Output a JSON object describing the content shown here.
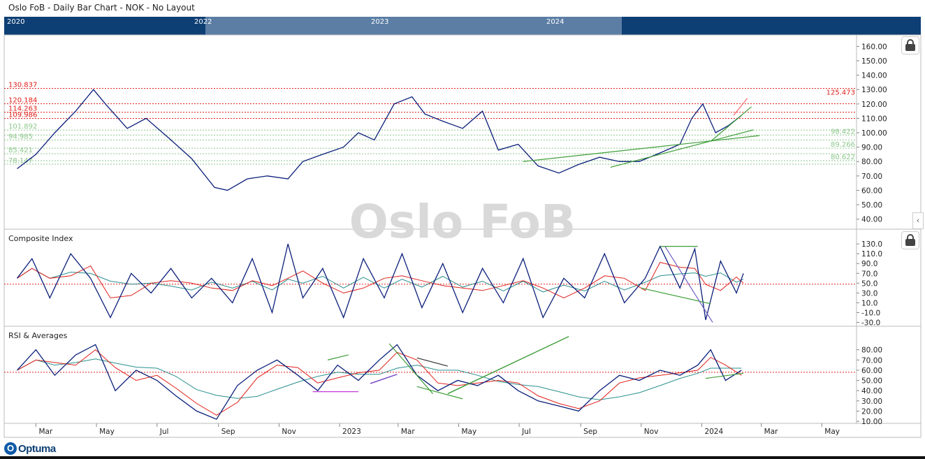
{
  "window_title": "Oslo FoB - Daily Bar Chart - NOK - No Layout",
  "navigator": {
    "years": [
      "2020",
      "2022",
      "2023",
      "2024"
    ]
  },
  "watermark": "Oslo FoB",
  "logo_text": "Optuma",
  "icons": {
    "lock": "lock-icon",
    "collapse": "chevron-left-icon",
    "logo": "optuma-logo-icon"
  },
  "colors": {
    "price": "#0b1f7a",
    "red_levels": "#e0201a",
    "green_levels": "#8cc78c",
    "trend_green": "#3f9e3a",
    "ma_red": "#e0201a",
    "ma_teal": "#2a8f8f",
    "nav_bg": "#0e3f74"
  },
  "chart_data": [
    {
      "type": "line",
      "panel": "price",
      "x": [
        "2022-02-10",
        "2022-03-01",
        "2022-03-20",
        "2022-04-10",
        "2022-04-28",
        "2022-05-10",
        "2022-06-01",
        "2022-06-20",
        "2022-07-15",
        "2022-08-05",
        "2022-08-28",
        "2022-09-10",
        "2022-09-30",
        "2022-10-20",
        "2022-11-10",
        "2022-11-25",
        "2022-12-15",
        "2023-01-05",
        "2023-01-20",
        "2023-02-05",
        "2023-02-25",
        "2023-03-15",
        "2023-03-28",
        "2023-04-15",
        "2023-05-05",
        "2023-05-25",
        "2023-06-10",
        "2023-06-30",
        "2023-07-20",
        "2023-08-10",
        "2023-08-30",
        "2023-09-20",
        "2023-10-10",
        "2023-10-30",
        "2023-11-20",
        "2023-12-10",
        "2023-12-22",
        "2024-01-02",
        "2024-01-15",
        "2024-01-28",
        "2024-02-10"
      ],
      "values": [
        75,
        85,
        100,
        115,
        130,
        120,
        103,
        110,
        95,
        82,
        62,
        60,
        68,
        70,
        68,
        80,
        85,
        90,
        100,
        95,
        120,
        125,
        113,
        108,
        103,
        115,
        88,
        92,
        77,
        72,
        78,
        83,
        80,
        80,
        86,
        92,
        110,
        120,
        100,
        105,
        112
      ],
      "yticks": [
        "160.00",
        "150.00",
        "140.00",
        "130.00",
        "120.00",
        "110.00",
        "100.00",
        "90.00",
        "80.00",
        "70.00",
        "60.00",
        "50.00",
        "40.00"
      ],
      "ylim": [
        34,
        167
      ],
      "levels_red": [
        {
          "value": 130.837,
          "label": "130.837"
        },
        {
          "value": 120.184,
          "label": "120.184"
        },
        {
          "value": 114.263,
          "label": "114.263"
        },
        {
          "value": 109.986,
          "label": "109.986"
        },
        {
          "value": 125.473,
          "label": "125.473"
        }
      ],
      "levels_green": [
        {
          "value": 101.892,
          "label": "101.892"
        },
        {
          "value": 98.422,
          "label": "98.422"
        },
        {
          "value": 94.985,
          "label": "94.985"
        },
        {
          "value": 89.266,
          "label": "89.266"
        },
        {
          "value": 85.421,
          "label": "85.421"
        },
        {
          "value": 80.622,
          "label": "80.622"
        },
        {
          "value": 78.147,
          "label": "78.147"
        }
      ]
    },
    {
      "type": "line",
      "panel": "composite",
      "title": "Composite Index",
      "x": [
        "2022-02-10",
        "2022-02-25",
        "2022-03-15",
        "2022-04-05",
        "2022-04-25",
        "2022-05-15",
        "2022-06-05",
        "2022-06-25",
        "2022-07-15",
        "2022-08-05",
        "2022-08-25",
        "2022-09-15",
        "2022-10-05",
        "2022-10-25",
        "2022-11-10",
        "2022-11-25",
        "2022-12-15",
        "2023-01-05",
        "2023-01-25",
        "2023-02-15",
        "2023-03-05",
        "2023-03-25",
        "2023-04-15",
        "2023-05-05",
        "2023-05-25",
        "2023-06-15",
        "2023-07-05",
        "2023-07-25",
        "2023-08-15",
        "2023-09-05",
        "2023-09-25",
        "2023-10-15",
        "2023-11-05",
        "2023-11-20",
        "2023-12-10",
        "2023-12-25",
        "2024-01-05",
        "2024-01-20",
        "2024-02-05",
        "2024-02-12"
      ],
      "values": [
        60,
        100,
        20,
        110,
        60,
        -20,
        70,
        30,
        80,
        20,
        60,
        10,
        100,
        -10,
        130,
        20,
        80,
        -20,
        100,
        20,
        110,
        0,
        90,
        -10,
        80,
        10,
        100,
        -20,
        60,
        20,
        110,
        10,
        60,
        125,
        40,
        120,
        -25,
        95,
        30,
        70
      ],
      "yticks": [
        "130.0",
        "110.0",
        "90.0",
        "70.0",
        "50.0",
        "30.0",
        "10.0",
        "-10.0",
        "-30.0"
      ],
      "ylim": [
        -35,
        143
      ],
      "ref_value": 48
    },
    {
      "type": "line",
      "panel": "rsi",
      "title": "RSI & Averages",
      "x": [
        "2022-02-10",
        "2022-03-01",
        "2022-03-20",
        "2022-04-10",
        "2022-04-30",
        "2022-05-20",
        "2022-06-10",
        "2022-07-01",
        "2022-07-20",
        "2022-08-10",
        "2022-08-30",
        "2022-09-20",
        "2022-10-10",
        "2022-10-30",
        "2022-11-20",
        "2022-12-10",
        "2022-12-30",
        "2023-01-20",
        "2023-02-10",
        "2023-02-28",
        "2023-03-20",
        "2023-04-10",
        "2023-04-30",
        "2023-05-20",
        "2023-06-10",
        "2023-06-30",
        "2023-07-20",
        "2023-08-10",
        "2023-08-30",
        "2023-09-20",
        "2023-10-10",
        "2023-10-30",
        "2023-11-20",
        "2023-12-10",
        "2023-12-28",
        "2024-01-10",
        "2024-01-25",
        "2024-02-10"
      ],
      "values": [
        60,
        80,
        55,
        75,
        85,
        40,
        60,
        50,
        35,
        20,
        12,
        45,
        60,
        70,
        55,
        40,
        65,
        50,
        70,
        85,
        55,
        40,
        50,
        45,
        55,
        40,
        30,
        25,
        20,
        40,
        55,
        50,
        60,
        55,
        65,
        80,
        50,
        60
      ],
      "yticks": [
        "80.00",
        "70.00",
        "60.00",
        "50.00",
        "40.00",
        "30.00",
        "20.00",
        "10.00"
      ],
      "ylim": [
        8,
        90
      ],
      "ref_value": 58
    }
  ],
  "x_axis": {
    "labels": [
      "Mar",
      "May",
      "Jul",
      "Sep",
      "Nov",
      "2023",
      "Mar",
      "May",
      "Jul",
      "Sep",
      "Nov",
      "2024",
      "Mar",
      "May"
    ]
  }
}
